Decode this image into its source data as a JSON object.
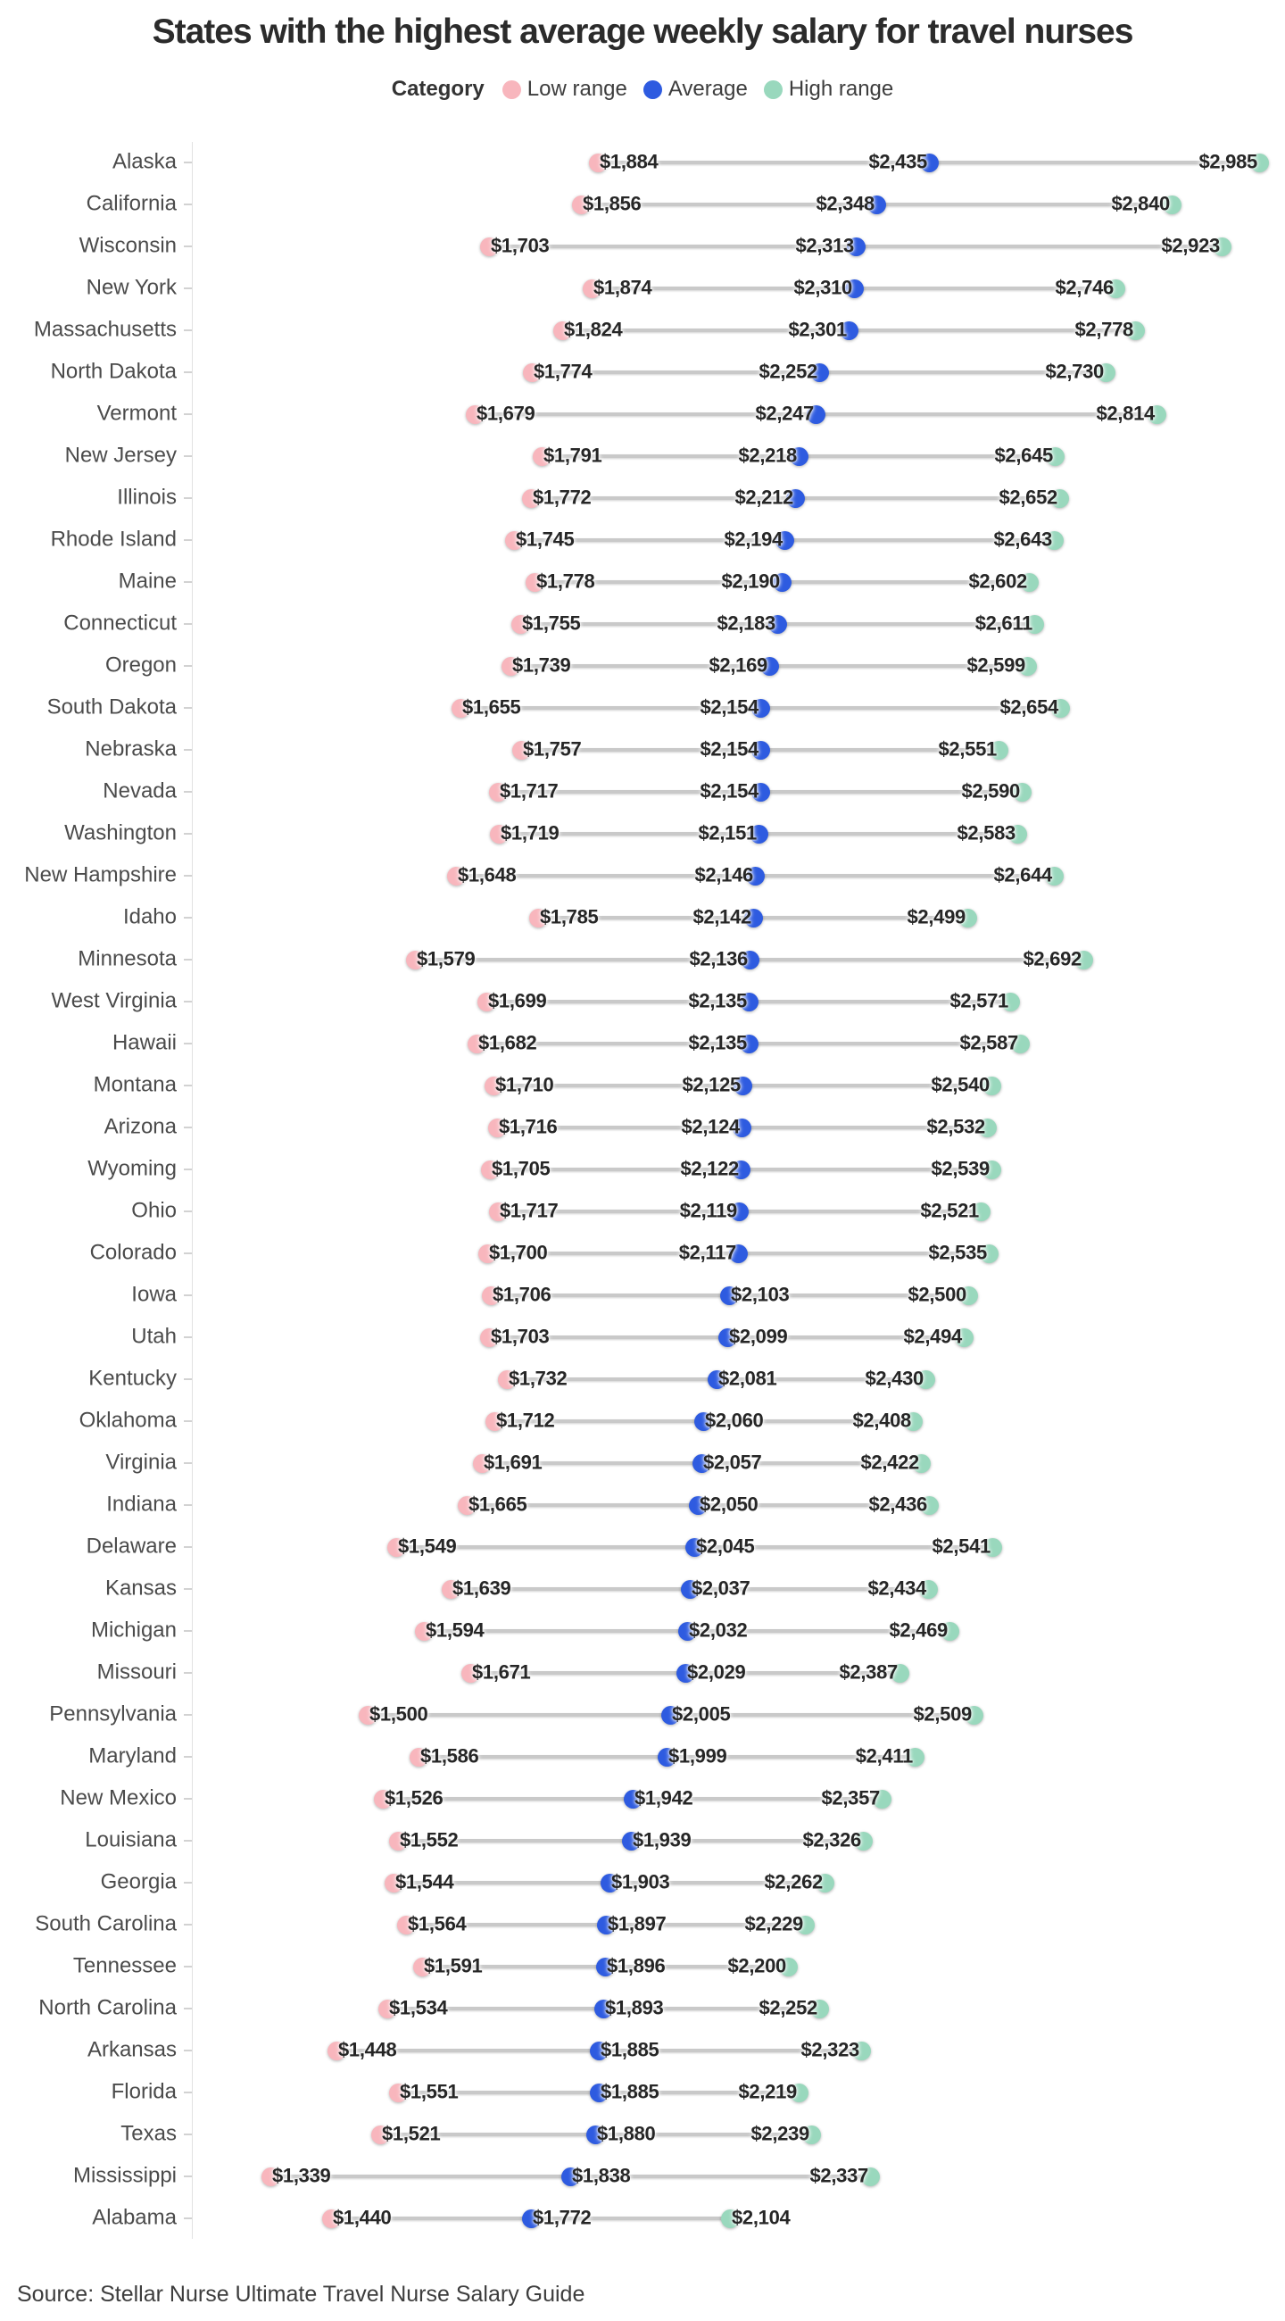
{
  "title": "States with the highest average weekly salary for travel nurses",
  "legend": {
    "title": "Category",
    "items": [
      {
        "label": "Low range",
        "color": "#f8b6bd"
      },
      {
        "label": "Average",
        "color": "#2e5be0"
      },
      {
        "label": "High range",
        "color": "#99d8bd"
      }
    ]
  },
  "source": "Source: Stellar Nurse Ultimate Travel Nurse Salary Guide",
  "chart_data": {
    "type": "dumbbell",
    "orientation": "horizontal rows, one per state, dots for low/average/high connected by a gray line",
    "value_prefix": "$",
    "value_axis_visible": false,
    "value_range_shown": [
      1339,
      2985
    ],
    "series_names": [
      "Low range",
      "Average",
      "High range"
    ],
    "rows": [
      {
        "state": "Alaska",
        "low": 1884,
        "average": 2435,
        "high": 2985
      },
      {
        "state": "California",
        "low": 1856,
        "average": 2348,
        "high": 2840
      },
      {
        "state": "Wisconsin",
        "low": 1703,
        "average": 2313,
        "high": 2923
      },
      {
        "state": "New York",
        "low": 1874,
        "average": 2310,
        "high": 2746
      },
      {
        "state": "Massachusetts",
        "low": 1824,
        "average": 2301,
        "high": 2778
      },
      {
        "state": "North Dakota",
        "low": 1774,
        "average": 2252,
        "high": 2730
      },
      {
        "state": "Vermont",
        "low": 1679,
        "average": 2247,
        "high": 2814
      },
      {
        "state": "New Jersey",
        "low": 1791,
        "average": 2218,
        "high": 2645
      },
      {
        "state": "Illinois",
        "low": 1772,
        "average": 2212,
        "high": 2652
      },
      {
        "state": "Rhode Island",
        "low": 1745,
        "average": 2194,
        "high": 2643
      },
      {
        "state": "Maine",
        "low": 1778,
        "average": 2190,
        "high": 2602
      },
      {
        "state": "Connecticut",
        "low": 1755,
        "average": 2183,
        "high": 2611
      },
      {
        "state": "Oregon",
        "low": 1739,
        "average": 2169,
        "high": 2599
      },
      {
        "state": "South Dakota",
        "low": 1655,
        "average": 2154,
        "high": 2654
      },
      {
        "state": "Nebraska",
        "low": 1757,
        "average": 2154,
        "high": 2551
      },
      {
        "state": "Nevada",
        "low": 1717,
        "average": 2154,
        "high": 2590
      },
      {
        "state": "Washington",
        "low": 1719,
        "average": 2151,
        "high": 2583
      },
      {
        "state": "New Hampshire",
        "low": 1648,
        "average": 2146,
        "high": 2644
      },
      {
        "state": "Idaho",
        "low": 1785,
        "average": 2142,
        "high": 2499
      },
      {
        "state": "Minnesota",
        "low": 1579,
        "average": 2136,
        "high": 2692
      },
      {
        "state": "West Virginia",
        "low": 1699,
        "average": 2135,
        "high": 2571
      },
      {
        "state": "Hawaii",
        "low": 1682,
        "average": 2135,
        "high": 2587
      },
      {
        "state": "Montana",
        "low": 1710,
        "average": 2125,
        "high": 2540
      },
      {
        "state": "Arizona",
        "low": 1716,
        "average": 2124,
        "high": 2532
      },
      {
        "state": "Wyoming",
        "low": 1705,
        "average": 2122,
        "high": 2539
      },
      {
        "state": "Ohio",
        "low": 1717,
        "average": 2119,
        "high": 2521
      },
      {
        "state": "Colorado",
        "low": 1700,
        "average": 2117,
        "high": 2535
      },
      {
        "state": "Iowa",
        "low": 1706,
        "average": 2103,
        "high": 2500
      },
      {
        "state": "Utah",
        "low": 1703,
        "average": 2099,
        "high": 2494
      },
      {
        "state": "Kentucky",
        "low": 1732,
        "average": 2081,
        "high": 2430
      },
      {
        "state": "Oklahoma",
        "low": 1712,
        "average": 2060,
        "high": 2408
      },
      {
        "state": "Virginia",
        "low": 1691,
        "average": 2057,
        "high": 2422
      },
      {
        "state": "Indiana",
        "low": 1665,
        "average": 2050,
        "high": 2436
      },
      {
        "state": "Delaware",
        "low": 1549,
        "average": 2045,
        "high": 2541
      },
      {
        "state": "Kansas",
        "low": 1639,
        "average": 2037,
        "high": 2434
      },
      {
        "state": "Michigan",
        "low": 1594,
        "average": 2032,
        "high": 2469
      },
      {
        "state": "Missouri",
        "low": 1671,
        "average": 2029,
        "high": 2387
      },
      {
        "state": "Pennsylvania",
        "low": 1500,
        "average": 2005,
        "high": 2509
      },
      {
        "state": "Maryland",
        "low": 1586,
        "average": 1999,
        "high": 2411
      },
      {
        "state": "New Mexico",
        "low": 1526,
        "average": 1942,
        "high": 2357
      },
      {
        "state": "Louisiana",
        "low": 1552,
        "average": 1939,
        "high": 2326
      },
      {
        "state": "Georgia",
        "low": 1544,
        "average": 1903,
        "high": 2262
      },
      {
        "state": "South Carolina",
        "low": 1564,
        "average": 1897,
        "high": 2229
      },
      {
        "state": "Tennessee",
        "low": 1591,
        "average": 1896,
        "high": 2200
      },
      {
        "state": "North Carolina",
        "low": 1534,
        "average": 1893,
        "high": 2252
      },
      {
        "state": "Arkansas",
        "low": 1448,
        "average": 1885,
        "high": 2323
      },
      {
        "state": "Florida",
        "low": 1551,
        "average": 1885,
        "high": 2219
      },
      {
        "state": "Texas",
        "low": 1521,
        "average": 1880,
        "high": 2239
      },
      {
        "state": "Mississippi",
        "low": 1339,
        "average": 1838,
        "high": 2337
      },
      {
        "state": "Alabama",
        "low": 1440,
        "average": 1772,
        "high": 2104
      }
    ]
  }
}
